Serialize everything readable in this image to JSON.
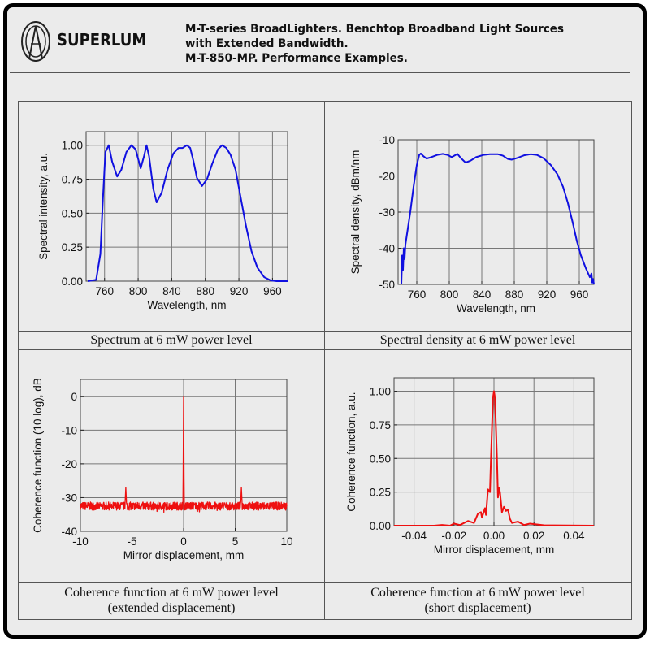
{
  "header": {
    "brand": "SUPERLUM",
    "title_lines": [
      "M-T-series BroadLighters. Benchtop Broadband Light Sources",
      "with Extended Bandwidth.",
      "M-T-850-MP. Performance Examples."
    ]
  },
  "captions": {
    "spectrum": "Spectrum at 6 mW power level",
    "density": "Spectral density at 6 mW power level",
    "coh_ext_1": "Coherence function at 6 mW power level",
    "coh_ext_2": "(extended displacement)",
    "coh_short_1": "Coherence function at 6 mW power level",
    "coh_short_2": "(short displacement)"
  },
  "chart_data": [
    {
      "type": "line",
      "id": "spectrum",
      "color": "#1010e0",
      "xlabel": "Wavelength, nm",
      "ylabel": "Spectral intensity, a.u.",
      "xlim": [
        738,
        978
      ],
      "ylim": [
        0,
        1.1
      ],
      "xticks": [
        760,
        800,
        840,
        880,
        920,
        960
      ],
      "xtick_labels": [
        "760",
        "800",
        "840",
        "880",
        "920",
        "960"
      ],
      "yticks": [
        0,
        0.25,
        0.5,
        0.75,
        1.0
      ],
      "ytick_labels": [
        "0.00",
        "0.25",
        "0.50",
        "0.75",
        "1.00"
      ],
      "grid": true,
      "x": [
        740,
        750,
        755,
        758,
        761,
        765,
        769,
        775,
        780,
        786,
        792,
        797,
        803,
        807,
        810,
        813,
        818,
        822,
        828,
        835,
        842,
        848,
        853,
        858,
        862,
        866,
        870,
        876,
        882,
        888,
        895,
        900,
        905,
        910,
        916,
        922,
        928,
        935,
        942,
        950,
        958,
        965,
        978
      ],
      "y": [
        0,
        0.01,
        0.2,
        0.6,
        0.95,
        1.0,
        0.88,
        0.77,
        0.82,
        0.95,
        1.0,
        0.97,
        0.83,
        0.92,
        1.0,
        0.92,
        0.68,
        0.58,
        0.65,
        0.82,
        0.94,
        0.98,
        0.98,
        1.0,
        0.98,
        0.88,
        0.76,
        0.7,
        0.75,
        0.86,
        0.97,
        1.0,
        0.98,
        0.93,
        0.82,
        0.62,
        0.42,
        0.22,
        0.1,
        0.03,
        0.005,
        0,
        0
      ]
    },
    {
      "type": "line",
      "id": "density",
      "color": "#1010e0",
      "xlabel": "Wavelength, nm",
      "ylabel": "Spectral density, dBm/nm",
      "xlim": [
        737,
        978
      ],
      "ylim": [
        -50,
        -10
      ],
      "xticks": [
        760,
        800,
        840,
        880,
        920,
        960
      ],
      "xtick_labels": [
        "760",
        "800",
        "840",
        "880",
        "920",
        "960"
      ],
      "yticks": [
        -50,
        -40,
        -30,
        -20,
        -10
      ],
      "ytick_labels": [
        "-50",
        "-40",
        "-30",
        "-20",
        "-10"
      ],
      "grid": true,
      "x": [
        741,
        742,
        743,
        744,
        745,
        746,
        748,
        752,
        756,
        760,
        763,
        765,
        768,
        772,
        778,
        785,
        792,
        798,
        803,
        807,
        810,
        814,
        820,
        826,
        833,
        842,
        850,
        860,
        866,
        872,
        877,
        884,
        892,
        900,
        908,
        916,
        925,
        933,
        940,
        946,
        952,
        957,
        962,
        968,
        973,
        975,
        976,
        977,
        978
      ],
      "y": [
        -50,
        -42,
        -46,
        -40,
        -43,
        -39,
        -36,
        -30,
        -23,
        -17,
        -14.2,
        -13.8,
        -14.5,
        -15.2,
        -14.8,
        -14.2,
        -13.9,
        -14.2,
        -14.8,
        -14.3,
        -13.9,
        -15,
        -16.3,
        -15.8,
        -14.8,
        -14.2,
        -14,
        -14,
        -14.4,
        -15.3,
        -15.5,
        -15,
        -14.3,
        -14,
        -14.2,
        -15.1,
        -17,
        -19.5,
        -23,
        -27.5,
        -33,
        -38,
        -42,
        -45.5,
        -48,
        -47,
        -49.5,
        -48.5,
        -50
      ]
    },
    {
      "type": "line",
      "id": "coherence_extended",
      "color": "#ee1010",
      "xlabel": "Mirror displacement, mm",
      "ylabel": "Coherence function (10 log), dB",
      "xlim": [
        -10,
        10
      ],
      "ylim": [
        -40,
        5
      ],
      "xticks": [
        -10,
        -5,
        0,
        5,
        10
      ],
      "xtick_labels": [
        "-10",
        "-5",
        "0",
        "5",
        "10"
      ],
      "yticks": [
        -40,
        -30,
        -20,
        -10,
        0
      ],
      "ytick_labels": [
        "-40",
        "-30",
        "-20",
        "-10",
        "0"
      ],
      "grid": true,
      "noise_floor_db": -32.5,
      "noise_amplitude_db": 1.2,
      "peaks": [
        {
          "x": -5.6,
          "y": -27
        },
        {
          "x": 0,
          "y": 0
        },
        {
          "x": 5.6,
          "y": -27
        }
      ]
    },
    {
      "type": "line",
      "id": "coherence_short",
      "color": "#ee1010",
      "xlabel": "Mirror displacement, mm",
      "ylabel": "Coherence function, a.u.",
      "xlim": [
        -0.05,
        0.05
      ],
      "ylim": [
        0,
        1.1
      ],
      "xticks": [
        -0.04,
        -0.02,
        0,
        0.02,
        0.04
      ],
      "xtick_labels": [
        "-0.04",
        "-0.02",
        "0.00",
        "0.02",
        "0.04"
      ],
      "yticks": [
        0,
        0.25,
        0.5,
        0.75,
        1.0
      ],
      "ytick_labels": [
        "0.00",
        "0.25",
        "0.50",
        "0.75",
        "1.00"
      ],
      "grid": true,
      "x": [
        -0.05,
        -0.03,
        -0.026,
        -0.022,
        -0.02,
        -0.017,
        -0.013,
        -0.01,
        -0.008,
        -0.0065,
        -0.006,
        -0.0045,
        -0.004,
        -0.003,
        -0.002,
        -0.0015,
        -0.0005,
        0,
        0.0005,
        0.0015,
        0.002,
        0.0025,
        0.003,
        0.004,
        0.005,
        0.006,
        0.007,
        0.008,
        0.009,
        0.012,
        0.015,
        0.018,
        0.021,
        0.025,
        0.03,
        0.05
      ],
      "y": [
        0,
        0,
        0.005,
        0,
        0.015,
        0.005,
        0.035,
        0.02,
        0.09,
        0.1,
        0.06,
        0.13,
        0.08,
        0.27,
        0.25,
        0.5,
        0.95,
        1.0,
        0.95,
        0.5,
        0.21,
        0.28,
        0.25,
        0.1,
        0.14,
        0.11,
        0.12,
        0.05,
        0.02,
        0.03,
        0.005,
        0.015,
        0.01,
        0.003,
        0.002,
        0
      ]
    }
  ]
}
